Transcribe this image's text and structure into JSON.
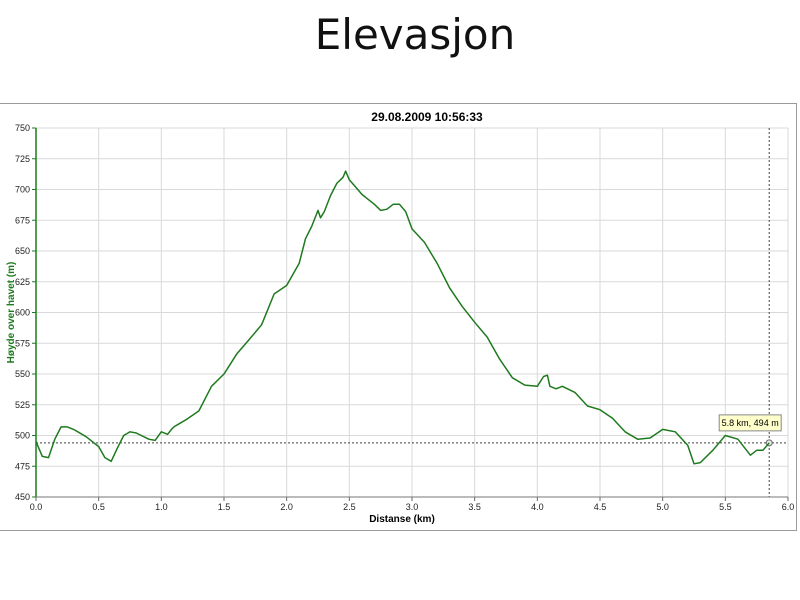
{
  "slide": {
    "title": "Elevasjon"
  },
  "chart_data": {
    "type": "line",
    "title": "29.08.2009 10:56:33",
    "xlabel": "Distanse (km)",
    "ylabel": "Høyde over havet (m)",
    "xlim": [
      0,
      6
    ],
    "ylim": [
      450,
      750
    ],
    "x_ticks": [
      "0.0",
      "0.5",
      "1.0",
      "1.5",
      "2.0",
      "2.5",
      "3.0",
      "3.5",
      "4.0",
      "4.5",
      "5.0",
      "5.5",
      "6.0"
    ],
    "y_ticks": [
      "450",
      "475",
      "500",
      "525",
      "550",
      "575",
      "600",
      "625",
      "650",
      "675",
      "700",
      "725",
      "750"
    ],
    "grid": true,
    "series": [
      {
        "color": "#1e7a1e",
        "x": [
          0.0,
          0.05,
          0.1,
          0.15,
          0.2,
          0.25,
          0.3,
          0.4,
          0.5,
          0.55,
          0.6,
          0.65,
          0.7,
          0.75,
          0.8,
          0.9,
          0.95,
          1.0,
          1.05,
          1.08,
          1.1,
          1.15,
          1.2,
          1.3,
          1.4,
          1.5,
          1.55,
          1.6,
          1.7,
          1.8,
          1.9,
          2.0,
          2.1,
          2.15,
          2.2,
          2.25,
          2.27,
          2.3,
          2.35,
          2.4,
          2.45,
          2.47,
          2.5,
          2.55,
          2.6,
          2.65,
          2.7,
          2.75,
          2.8,
          2.85,
          2.9,
          2.95,
          3.0,
          3.1,
          3.2,
          3.3,
          3.4,
          3.5,
          3.6,
          3.7,
          3.8,
          3.9,
          4.0,
          4.05,
          4.08,
          4.1,
          4.15,
          4.2,
          4.3,
          4.4,
          4.5,
          4.6,
          4.7,
          4.8,
          4.9,
          5.0,
          5.1,
          5.2,
          5.25,
          5.3,
          5.4,
          5.5,
          5.6,
          5.7,
          5.75,
          5.8,
          5.85
        ],
        "y": [
          495,
          483,
          482,
          497,
          507,
          507,
          505,
          499,
          491,
          482,
          479,
          490,
          500,
          503,
          502,
          497,
          496,
          503,
          501,
          505,
          507,
          510,
          513,
          520,
          540,
          550,
          558,
          566,
          578,
          590,
          615,
          622,
          640,
          660,
          670,
          683,
          677,
          682,
          695,
          705,
          710,
          715,
          708,
          702,
          696,
          692,
          688,
          683,
          684,
          688,
          688,
          682,
          668,
          657,
          640,
          620,
          605,
          592,
          580,
          562,
          547,
          541,
          540,
          548,
          549,
          540,
          538,
          540,
          535,
          524,
          521,
          514,
          503,
          497,
          498,
          505,
          503,
          492,
          477,
          478,
          488,
          500,
          497,
          484,
          488,
          488,
          494
        ]
      }
    ],
    "cursor": {
      "x": 5.85,
      "y": 494
    },
    "tooltip": "5.8 km, 494 m"
  }
}
